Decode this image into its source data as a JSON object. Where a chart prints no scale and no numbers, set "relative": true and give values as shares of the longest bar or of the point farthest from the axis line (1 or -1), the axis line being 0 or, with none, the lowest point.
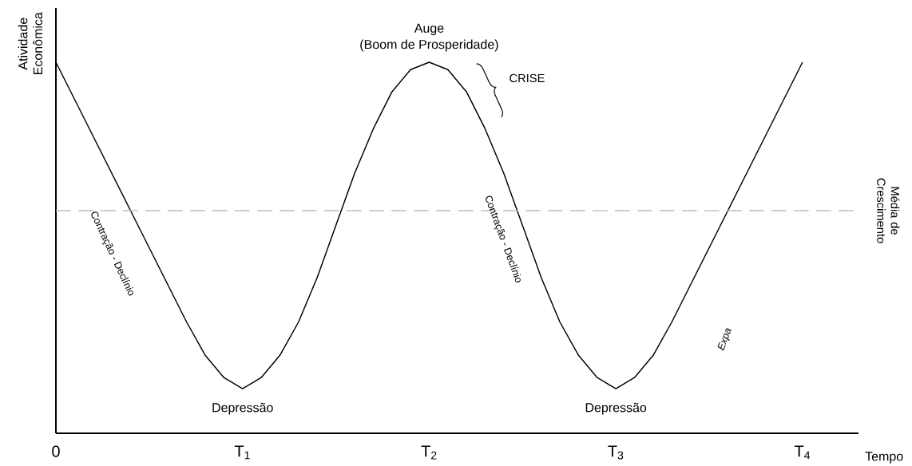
{
  "chart_data": {
    "type": "line",
    "relative": true,
    "xlabel": "Tempo",
    "ylabel": "Atividade Econômica",
    "xlim": [
      0,
      4.3
    ],
    "xticks": [
      {
        "value": 0,
        "label": "0"
      },
      {
        "value": 1,
        "label": "T$_{1}$"
      },
      {
        "value": 2,
        "label": "T$_{2}$"
      },
      {
        "value": 3,
        "label": "T$_{3}$"
      },
      {
        "value": 4,
        "label": "T$_{4}$"
      }
    ],
    "marker": "none",
    "line_style": "solid",
    "series": [
      {
        "color": "#000000",
        "x": [
          0,
          0.1,
          0.2,
          0.3,
          0.4,
          0.5,
          0.6,
          0.7,
          0.8,
          0.9,
          1.0,
          1.1,
          1.2,
          1.3,
          1.4,
          1.5,
          1.6,
          1.7,
          1.8,
          1.9,
          2.0,
          2.1,
          2.2,
          2.3,
          2.4,
          2.5,
          2.6,
          2.7,
          2.8,
          2.9,
          3.0,
          3.1,
          3.2,
          3.3,
          3.4,
          3.5,
          3.6,
          3.7,
          3.8,
          3.9,
          4.0
        ],
        "values": [
          1.0,
          0.9,
          0.8,
          0.7,
          0.6,
          0.5,
          0.4,
          0.3,
          0.21,
          0.15,
          0.12,
          0.15,
          0.21,
          0.3,
          0.42,
          0.56,
          0.7,
          0.82,
          0.92,
          0.98,
          1.0,
          0.98,
          0.92,
          0.82,
          0.7,
          0.56,
          0.42,
          0.3,
          0.21,
          0.15,
          0.12,
          0.15,
          0.21,
          0.3,
          0.4,
          0.5,
          0.6,
          0.7,
          0.8,
          0.9,
          1.0
        ]
      }
    ],
    "ref_lines": [
      {
        "axis": "y",
        "value": 0.6,
        "label": "Média de Crescimento",
        "color": "#bfbfbf",
        "line_style": "dashed"
      }
    ],
    "annotations": [
      {
        "text": "Auge",
        "x": 2,
        "y": 1.0
      },
      {
        "text": "(Boom de Prosperidade)",
        "x": 2,
        "y": 1.0
      },
      "CRISE",
      "Contração - Declínio",
      "Contração - Declínio",
      {
        "text": "Depressão",
        "x": 1,
        "y": 0.12
      },
      {
        "text": "Depressão",
        "x": 3,
        "y": 0.12
      },
      "Expa"
    ]
  }
}
